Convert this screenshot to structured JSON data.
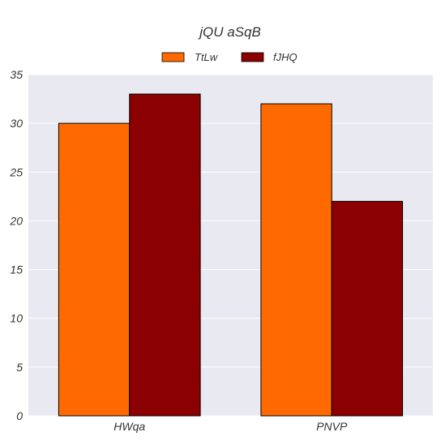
{
  "chart_data": {
    "type": "bar",
    "title": "jQU aSqB",
    "xlabel": "",
    "ylabel": "",
    "categories": [
      "HWqa",
      "PNVP"
    ],
    "series": [
      {
        "name": "TtLw",
        "values": [
          30,
          32
        ],
        "color": "#ff6a00"
      },
      {
        "name": "fJHQ",
        "values": [
          33,
          22
        ],
        "color": "#8b0000"
      }
    ],
    "ylim": [
      0,
      35
    ],
    "yticks": [
      0,
      5,
      10,
      15,
      20,
      25,
      30,
      35
    ],
    "grid": true,
    "legend_position": "top-center",
    "background_color": "#e9e9f1",
    "bar_edge_color": "#000000"
  }
}
